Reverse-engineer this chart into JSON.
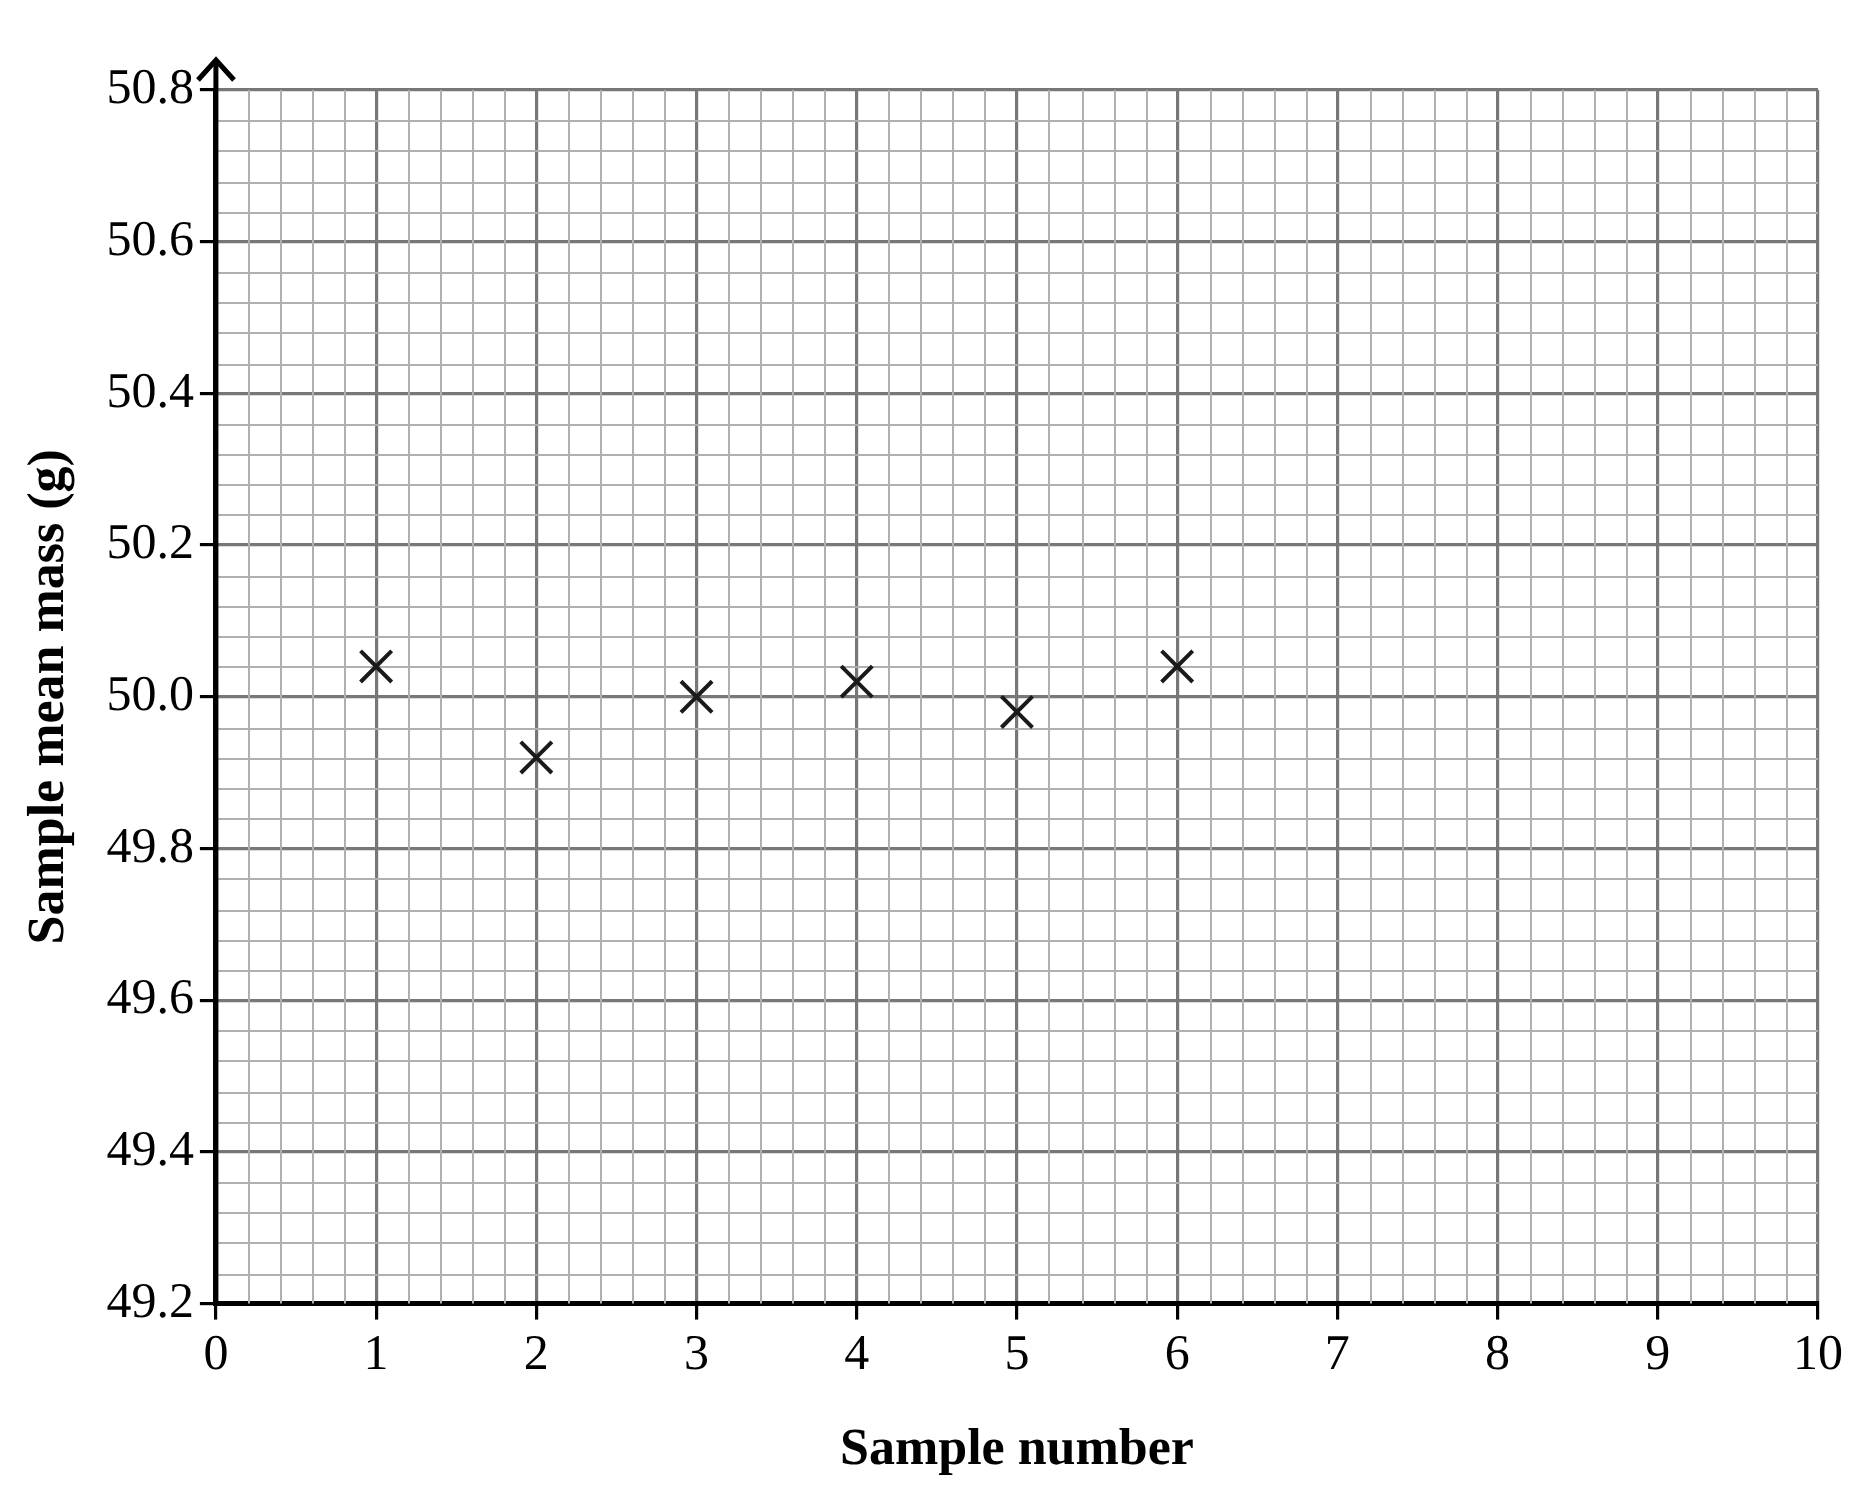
{
  "chart_data": {
    "type": "scatter",
    "xlabel": "Sample number",
    "ylabel": "Sample mean mass (g)",
    "x": [
      1,
      2,
      3,
      4,
      5,
      6
    ],
    "series": [
      {
        "color": "#1a1a1a",
        "values": [
          50.04,
          49.92,
          50.0,
          50.02,
          49.98,
          50.04
        ]
      }
    ],
    "xlim": [
      0,
      10
    ],
    "xticks": [
      0,
      1,
      2,
      3,
      4,
      5,
      6,
      7,
      8,
      9,
      10
    ],
    "ylim": [
      49.2,
      50.8
    ],
    "yticks": [
      {
        "value": 49.2,
        "label": "49.2"
      },
      {
        "value": 49.4,
        "label": "49.4"
      },
      {
        "value": 49.6,
        "label": "49.6"
      },
      {
        "value": 49.8,
        "label": "49.8"
      },
      {
        "value": 50.0,
        "label": "50.0"
      },
      {
        "value": 50.2,
        "label": "50.2"
      },
      {
        "value": 50.4,
        "label": "50.4"
      },
      {
        "value": 50.6,
        "label": "50.6"
      },
      {
        "value": 50.8,
        "label": "50.8"
      }
    ],
    "grid": true,
    "legend": false,
    "marker": "cross"
  }
}
